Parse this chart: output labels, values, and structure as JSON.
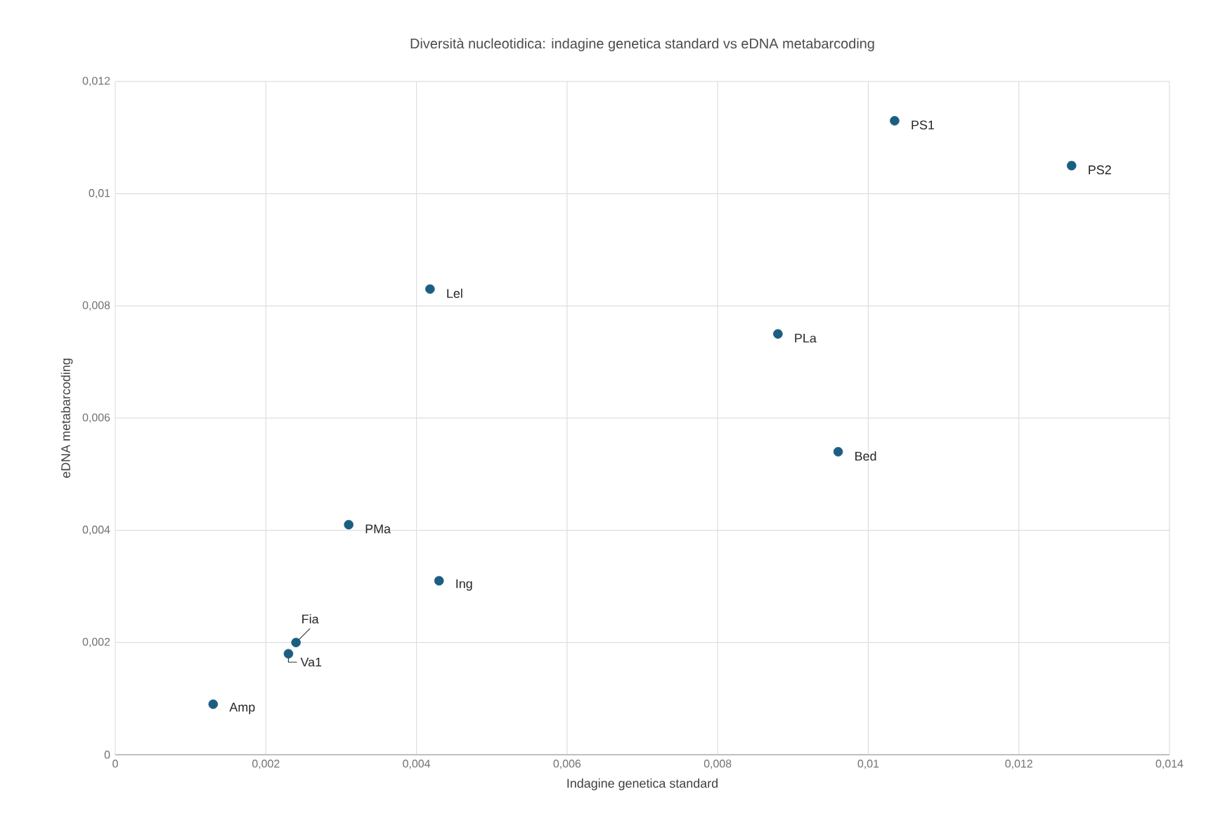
{
  "chart_data": {
    "type": "scatter",
    "title": "Diversità nucleotidica: indagine genetica standard vs eDNA metabarcoding",
    "xlabel": "Indagine genetica standard",
    "ylabel": "eDNA metabarcoding",
    "x": [
      0.01035,
      0.0127,
      0.00418,
      0.0088,
      0.0096,
      0.0031,
      0.0043,
      0.0024,
      0.0023,
      0.0013
    ],
    "series": [
      {
        "color": "#1b5e82",
        "values": [
          0.0113,
          0.0105,
          0.0083,
          0.0075,
          0.0054,
          0.0041,
          0.0031,
          0.002,
          0.0018,
          0.0009
        ]
      }
    ],
    "annotations": [
      {
        "text": "PS1",
        "x": 0.01035,
        "y": 0.0113
      },
      {
        "text": "PS2",
        "x": 0.0127,
        "y": 0.0105
      },
      {
        "text": "Lel",
        "x": 0.00418,
        "y": 0.0083
      },
      {
        "text": "PLa",
        "x": 0.0088,
        "y": 0.0075
      },
      {
        "text": "Bed",
        "x": 0.0096,
        "y": 0.0054
      },
      {
        "text": "PMa",
        "x": 0.0031,
        "y": 0.0041
      },
      {
        "text": "Ing",
        "x": 0.0043,
        "y": 0.0031
      },
      {
        "text": "Fia",
        "x": 0.0024,
        "y": 0.002
      },
      {
        "text": "Va1",
        "x": 0.0023,
        "y": 0.0018
      },
      {
        "text": "Amp",
        "x": 0.0013,
        "y": 0.0009
      }
    ],
    "xlim": [
      0,
      0.014
    ],
    "xticks": [
      {
        "value": 0,
        "label": "0"
      },
      {
        "value": 0.002,
        "label": "0,002"
      },
      {
        "value": 0.004,
        "label": "0,004"
      },
      {
        "value": 0.006,
        "label": "0,006"
      },
      {
        "value": 0.008,
        "label": "0,008"
      },
      {
        "value": 0.01,
        "label": "0,01"
      },
      {
        "value": 0.012,
        "label": "0,012"
      },
      {
        "value": 0.014,
        "label": "0,014"
      }
    ],
    "ylim": [
      0,
      0.012
    ],
    "yticks": [
      {
        "value": 0,
        "label": "0"
      },
      {
        "value": 0.002,
        "label": "0,002"
      },
      {
        "value": 0.004,
        "label": "0,004"
      },
      {
        "value": 0.006,
        "label": "0,006"
      },
      {
        "value": 0.008,
        "label": "0,008"
      },
      {
        "value": 0.01,
        "label": "0,01"
      },
      {
        "value": 0.012,
        "label": "0,012"
      }
    ],
    "grid": true,
    "marker": "circle"
  }
}
